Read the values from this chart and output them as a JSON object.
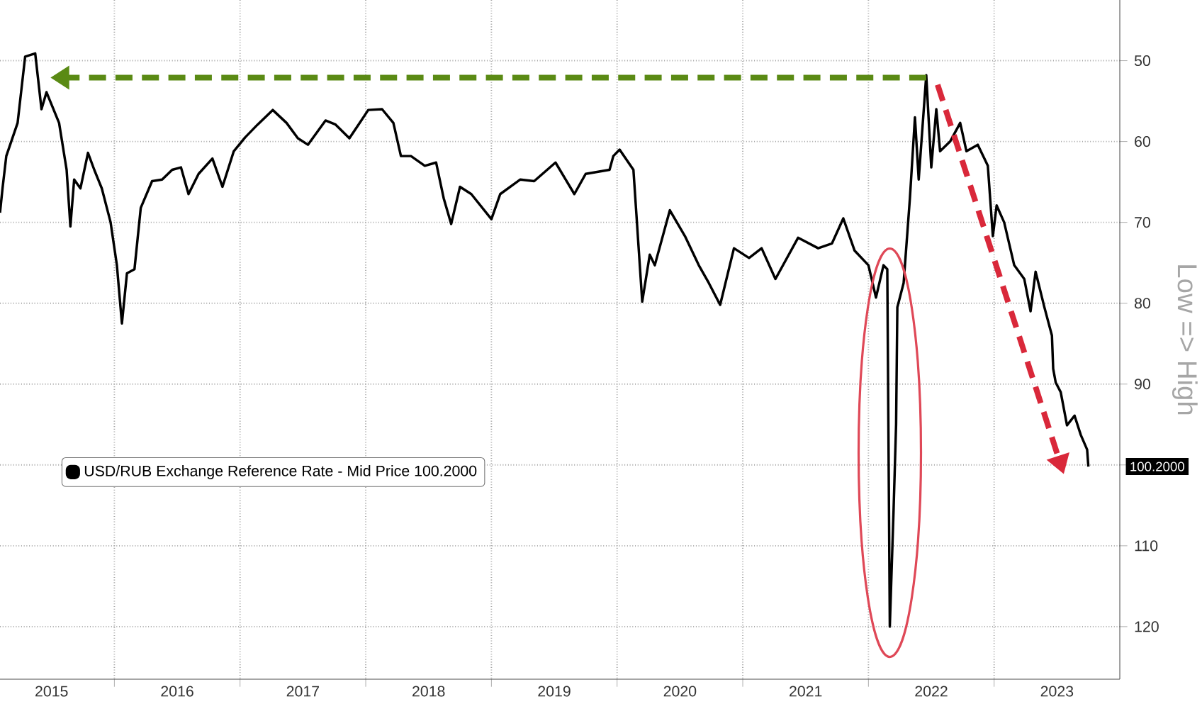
{
  "chart_data": {
    "type": "line",
    "ylabel": "Low => High",
    "x": [
      2015.09,
      2015.11,
      2015.14,
      2015.23,
      2015.29,
      2015.37,
      2015.42,
      2015.46,
      2015.56,
      2015.62,
      2015.65,
      2015.68,
      2015.73,
      2015.79,
      2015.84,
      2015.9,
      2015.97,
      2016.02,
      2016.06,
      2016.1,
      2016.16,
      2016.21,
      2016.3,
      2016.38,
      2016.46,
      2016.53,
      2016.59,
      2016.67,
      2016.78,
      2016.86,
      2016.95,
      2017.04,
      2017.14,
      2017.26,
      2017.37,
      2017.46,
      2017.54,
      2017.68,
      2017.76,
      2017.87,
      2018.02,
      2018.13,
      2018.22,
      2018.28,
      2018.36,
      2018.47,
      2018.56,
      2018.62,
      2018.68,
      2018.75,
      2018.84,
      2019.0,
      2019.07,
      2019.23,
      2019.34,
      2019.51,
      2019.66,
      2019.75,
      2019.94,
      2019.97,
      2020.02,
      2020.13,
      2020.2,
      2020.26,
      2020.3,
      2020.42,
      2020.54,
      2020.65,
      2020.73,
      2020.82,
      2020.93,
      2021.05,
      2021.15,
      2021.26,
      2021.44,
      2021.6,
      2021.71,
      2021.8,
      2021.89,
      2022.0,
      2022.06,
      2022.12,
      2022.15,
      2022.17,
      2022.2,
      2022.22,
      2022.23,
      2022.28,
      2022.33,
      2022.37,
      2022.4,
      2022.46,
      2022.5,
      2022.54,
      2022.57,
      2022.65,
      2022.73,
      2022.78,
      2022.87,
      2022.95,
      2022.99,
      2023.02,
      2023.08,
      2023.16,
      2023.24,
      2023.29,
      2023.33,
      2023.4,
      2023.46,
      2023.47,
      2023.49,
      2023.53,
      2023.58,
      2023.64,
      2023.69,
      2023.74,
      2023.75
    ],
    "series": [
      {
        "name": "USD/RUB Exchange Reference Rate - Mid Price 100.2000",
        "color": "#000000",
        "values": [
          68.8,
          65.8,
          61.8,
          57.7,
          49.5,
          49.1,
          56,
          53.9,
          57.7,
          63.5,
          70.5,
          64.7,
          65.8,
          61.4,
          63.5,
          65.8,
          70,
          75.3,
          82.5,
          76.3,
          75.8,
          68.2,
          64.9,
          64.7,
          63.5,
          63.2,
          66.5,
          64,
          62.1,
          65.6,
          61.2,
          59.5,
          57.9,
          56.1,
          57.7,
          59.6,
          60.4,
          57.4,
          57.9,
          59.6,
          56.1,
          56,
          57.7,
          61.8,
          61.8,
          63,
          62.6,
          67,
          70.2,
          65.6,
          66.5,
          69.6,
          66.5,
          64.7,
          64.9,
          62.6,
          66.5,
          64,
          63.5,
          61.8,
          61,
          63.5,
          79.8,
          74,
          75.3,
          68.5,
          71.7,
          75.3,
          77.5,
          80.2,
          73.2,
          74.4,
          73.2,
          77,
          71.9,
          73.2,
          72.6,
          69.5,
          73.5,
          75.3,
          79.3,
          75.3,
          75.8,
          120,
          105.6,
          95,
          80.5,
          77.5,
          67,
          57,
          64.7,
          51.8,
          63.2,
          56,
          61.2,
          60,
          57.7,
          61.2,
          60.4,
          63,
          71.7,
          67.9,
          70,
          75.3,
          77,
          81,
          76.1,
          80.5,
          84,
          88.1,
          89.8,
          91,
          95.1,
          93.9,
          96.3,
          98.1,
          100.2
        ]
      }
    ],
    "xlim": [
      2015.09,
      2024.0
    ],
    "xticks": [
      {
        "value": 2015.5,
        "label": "2015"
      },
      {
        "value": 2016,
        "label": null
      },
      {
        "value": 2016.5,
        "label": "2016"
      },
      {
        "value": 2017,
        "label": null
      },
      {
        "value": 2017.5,
        "label": "2017"
      },
      {
        "value": 2018,
        "label": null
      },
      {
        "value": 2018.5,
        "label": "2018"
      },
      {
        "value": 2019,
        "label": null
      },
      {
        "value": 2019.5,
        "label": "2019"
      },
      {
        "value": 2020,
        "label": null
      },
      {
        "value": 2020.5,
        "label": "2020"
      },
      {
        "value": 2021,
        "label": null
      },
      {
        "value": 2021.5,
        "label": "2021"
      },
      {
        "value": 2022,
        "label": null
      },
      {
        "value": 2022.5,
        "label": "2022"
      },
      {
        "value": 2023,
        "label": null
      },
      {
        "value": 2023.5,
        "label": "2023"
      }
    ],
    "ylim": [
      126.5,
      42.5
    ],
    "yticks": [
      50,
      60,
      70,
      80,
      90,
      {
        "value": 100,
        "label": null
      },
      110,
      120
    ],
    "grid": true,
    "legend": "left",
    "annotations": [
      "100.2000"
    ]
  }
}
